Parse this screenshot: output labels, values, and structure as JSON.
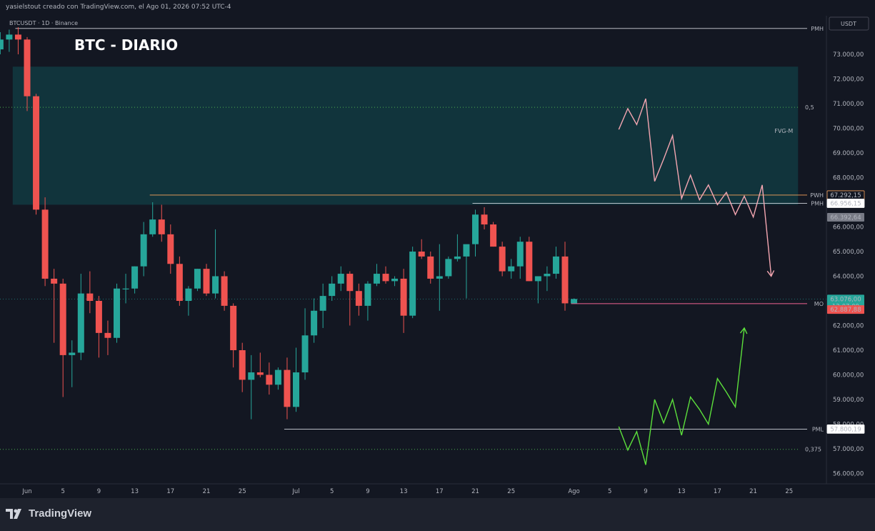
{
  "header": {
    "caption": "yasielstout creado con TradingView.com, el Ago 01, 2026 07:52 UTC-4"
  },
  "symbol_info": "BTCUSDT · 1D · Binance",
  "title": "BTC - DIARIO",
  "currency": "USDT",
  "footer": {
    "brand": "TradingView"
  },
  "colors": {
    "background": "#131722",
    "up": "#26a69a",
    "down": "#ef5350",
    "zone": "#11363e",
    "bearish_path": "#f4a6b1",
    "bullish_path": "#5ce03c",
    "fib": "#4caf50"
  },
  "chart_data": {
    "type": "candlestick",
    "title": "BTC - DIARIO",
    "price_axis": {
      "min": 55600,
      "max": 74200,
      "ticks": [
        73000,
        72000,
        71000,
        70000,
        69000,
        68000,
        67000,
        66000,
        65000,
        64000,
        63000,
        62000,
        61000,
        60000,
        59000,
        58000,
        57000,
        56000
      ]
    },
    "price_tick_labels": [
      "73.000,00",
      "72.000,00",
      "71.000,00",
      "70.000,00",
      "69.000,00",
      "68.000,00",
      "67.000,00",
      "66.000,00",
      "65.000,00",
      "64.000,00",
      "63.000,00",
      "62.000,00",
      "61.000,00",
      "60.000,00",
      "59.000,00",
      "58.000,00",
      "57.000,00",
      "56.000,00"
    ],
    "date_ticks": [
      {
        "day": 0,
        "label": "Jun"
      },
      {
        "day": 4,
        "label": "5"
      },
      {
        "day": 8,
        "label": "9"
      },
      {
        "day": 12,
        "label": "13"
      },
      {
        "day": 16,
        "label": "17"
      },
      {
        "day": 20,
        "label": "21"
      },
      {
        "day": 24,
        "label": "25"
      },
      {
        "day": 30,
        "label": "Jul"
      },
      {
        "day": 34,
        "label": "5"
      },
      {
        "day": 38,
        "label": "9"
      },
      {
        "day": 42,
        "label": "13"
      },
      {
        "day": 46,
        "label": "17"
      },
      {
        "day": 50,
        "label": "21"
      },
      {
        "day": 54,
        "label": "25"
      },
      {
        "day": 61,
        "label": "Ago"
      },
      {
        "day": 65,
        "label": "5"
      },
      {
        "day": 69,
        "label": "9"
      },
      {
        "day": 73,
        "label": "13"
      },
      {
        "day": 77,
        "label": "17"
      },
      {
        "day": 81,
        "label": "21"
      },
      {
        "day": 85,
        "label": "25"
      }
    ],
    "candles": [
      {
        "d": -3,
        "o": 73200,
        "h": 73900,
        "l": 73000,
        "c": 73600
      },
      {
        "d": -2,
        "o": 73600,
        "h": 74000,
        "l": 73100,
        "c": 73800
      },
      {
        "d": -1,
        "o": 73800,
        "h": 74100,
        "l": 73000,
        "c": 73600
      },
      {
        "d": 0,
        "o": 73600,
        "h": 73700,
        "l": 70700,
        "c": 71300
      },
      {
        "d": 1,
        "o": 71300,
        "h": 71400,
        "l": 66500,
        "c": 66700
      },
      {
        "d": 2,
        "o": 66700,
        "h": 67200,
        "l": 63600,
        "c": 63900
      },
      {
        "d": 3,
        "o": 63900,
        "h": 64300,
        "l": 61300,
        "c": 63700
      },
      {
        "d": 4,
        "o": 63700,
        "h": 63900,
        "l": 59100,
        "c": 60800
      },
      {
        "d": 5,
        "o": 60800,
        "h": 61400,
        "l": 59500,
        "c": 60900
      },
      {
        "d": 6,
        "o": 60900,
        "h": 64100,
        "l": 60600,
        "c": 63300
      },
      {
        "d": 7,
        "o": 63300,
        "h": 64200,
        "l": 62500,
        "c": 63000
      },
      {
        "d": 8,
        "o": 63000,
        "h": 63200,
        "l": 60700,
        "c": 61700
      },
      {
        "d": 9,
        "o": 61700,
        "h": 62200,
        "l": 60800,
        "c": 61500
      },
      {
        "d": 10,
        "o": 61500,
        "h": 63700,
        "l": 61300,
        "c": 63500
      },
      {
        "d": 11,
        "o": 63500,
        "h": 64100,
        "l": 62900,
        "c": 63500
      },
      {
        "d": 12,
        "o": 63500,
        "h": 64400,
        "l": 63300,
        "c": 64400
      },
      {
        "d": 13,
        "o": 64400,
        "h": 66200,
        "l": 64000,
        "c": 65700
      },
      {
        "d": 14,
        "o": 65700,
        "h": 67000,
        "l": 65600,
        "c": 66300
      },
      {
        "d": 15,
        "o": 66300,
        "h": 66900,
        "l": 65400,
        "c": 65700
      },
      {
        "d": 16,
        "o": 65700,
        "h": 66100,
        "l": 64100,
        "c": 64500
      },
      {
        "d": 17,
        "o": 64500,
        "h": 64800,
        "l": 62800,
        "c": 63000
      },
      {
        "d": 18,
        "o": 63000,
        "h": 63600,
        "l": 62400,
        "c": 63500
      },
      {
        "d": 19,
        "o": 63500,
        "h": 64300,
        "l": 63400,
        "c": 64300
      },
      {
        "d": 20,
        "o": 64300,
        "h": 64500,
        "l": 63200,
        "c": 63300
      },
      {
        "d": 21,
        "o": 63300,
        "h": 65900,
        "l": 63100,
        "c": 64000
      },
      {
        "d": 22,
        "o": 64000,
        "h": 64200,
        "l": 62600,
        "c": 62800
      },
      {
        "d": 23,
        "o": 62800,
        "h": 62900,
        "l": 60300,
        "c": 61000
      },
      {
        "d": 24,
        "o": 61000,
        "h": 61300,
        "l": 59300,
        "c": 59800
      },
      {
        "d": 25,
        "o": 59800,
        "h": 60800,
        "l": 58200,
        "c": 60100
      },
      {
        "d": 26,
        "o": 60100,
        "h": 60900,
        "l": 59900,
        "c": 60000
      },
      {
        "d": 27,
        "o": 60000,
        "h": 60500,
        "l": 59200,
        "c": 59600
      },
      {
        "d": 28,
        "o": 59600,
        "h": 60300,
        "l": 59400,
        "c": 60200
      },
      {
        "d": 29,
        "o": 60200,
        "h": 60700,
        "l": 58200,
        "c": 58700
      },
      {
        "d": 30,
        "o": 58700,
        "h": 61100,
        "l": 58500,
        "c": 60100
      },
      {
        "d": 31,
        "o": 60100,
        "h": 62700,
        "l": 59800,
        "c": 61600
      },
      {
        "d": 32,
        "o": 61600,
        "h": 63100,
        "l": 61300,
        "c": 62600
      },
      {
        "d": 33,
        "o": 62600,
        "h": 63700,
        "l": 61900,
        "c": 63200
      },
      {
        "d": 34,
        "o": 63200,
        "h": 64000,
        "l": 63000,
        "c": 63700
      },
      {
        "d": 35,
        "o": 63700,
        "h": 64400,
        "l": 63400,
        "c": 64100
      },
      {
        "d": 36,
        "o": 64100,
        "h": 64200,
        "l": 62000,
        "c": 63400
      },
      {
        "d": 37,
        "o": 63400,
        "h": 63700,
        "l": 62400,
        "c": 62800
      },
      {
        "d": 38,
        "o": 62800,
        "h": 63800,
        "l": 62200,
        "c": 63700
      },
      {
        "d": 39,
        "o": 63700,
        "h": 64500,
        "l": 63600,
        "c": 64100
      },
      {
        "d": 40,
        "o": 64100,
        "h": 64400,
        "l": 63700,
        "c": 63800
      },
      {
        "d": 41,
        "o": 63800,
        "h": 64000,
        "l": 63600,
        "c": 63900
      },
      {
        "d": 42,
        "o": 63900,
        "h": 64300,
        "l": 61700,
        "c": 62400
      },
      {
        "d": 43,
        "o": 62400,
        "h": 65200,
        "l": 62300,
        "c": 65000
      },
      {
        "d": 44,
        "o": 65000,
        "h": 65500,
        "l": 64700,
        "c": 64800
      },
      {
        "d": 45,
        "o": 64800,
        "h": 65000,
        "l": 63700,
        "c": 63900
      },
      {
        "d": 46,
        "o": 63900,
        "h": 65300,
        "l": 62600,
        "c": 64000
      },
      {
        "d": 47,
        "o": 64000,
        "h": 64800,
        "l": 63900,
        "c": 64700
      },
      {
        "d": 48,
        "o": 64700,
        "h": 65700,
        "l": 64600,
        "c": 64800
      },
      {
        "d": 49,
        "o": 64800,
        "h": 65200,
        "l": 63100,
        "c": 65300
      },
      {
        "d": 50,
        "o": 65300,
        "h": 66700,
        "l": 64800,
        "c": 66500
      },
      {
        "d": 51,
        "o": 66500,
        "h": 66800,
        "l": 65900,
        "c": 66100
      },
      {
        "d": 52,
        "o": 66100,
        "h": 66200,
        "l": 65200,
        "c": 65200
      },
      {
        "d": 53,
        "o": 65200,
        "h": 65400,
        "l": 64000,
        "c": 64200
      },
      {
        "d": 54,
        "o": 64200,
        "h": 64700,
        "l": 63900,
        "c": 64400
      },
      {
        "d": 55,
        "o": 64400,
        "h": 65600,
        "l": 63900,
        "c": 65400
      },
      {
        "d": 56,
        "o": 65400,
        "h": 65600,
        "l": 63800,
        "c": 63800
      },
      {
        "d": 57,
        "o": 63800,
        "h": 64000,
        "l": 62900,
        "c": 64000
      },
      {
        "d": 58,
        "o": 64000,
        "h": 64400,
        "l": 63400,
        "c": 64100
      },
      {
        "d": 59,
        "o": 64100,
        "h": 65200,
        "l": 63900,
        "c": 64800
      },
      {
        "d": 60,
        "o": 64800,
        "h": 65400,
        "l": 62600,
        "c": 62900
      },
      {
        "d": 61,
        "o": 62900,
        "h": 63100,
        "l": 62900,
        "c": 63076
      }
    ],
    "fvg_zone": {
      "label": "FVG-M",
      "from_day": -4,
      "to_day": 86,
      "top": 72500,
      "bottom": 66900
    },
    "levels": [
      {
        "name": "PMH",
        "price": 74050,
        "from_day": -1,
        "label": "PMH",
        "color": "#d1d4dc"
      },
      {
        "name": "PWH",
        "price": 67292.15,
        "from_day": 14,
        "label": "PWH",
        "value_label": "67.292,15",
        "color": "#f7a35c"
      },
      {
        "name": "PMH",
        "price": 66956.15,
        "from_day": 50,
        "label": "PMH",
        "value_label": "66.956,15",
        "color": "#d1d4dc"
      },
      {
        "name": "MO",
        "price": 62887.88,
        "from_day": 61,
        "label": "MO",
        "value_label": "62.887,88",
        "color": "#f06292"
      },
      {
        "name": "PML",
        "price": 57800.19,
        "from_day": 29,
        "label": "PML",
        "value_label": "57.800,19",
        "color": "#d1d4dc"
      }
    ],
    "fib_levels": [
      {
        "label": "0,5",
        "price": 70850
      },
      {
        "label": "0,375",
        "price": 56980
      }
    ],
    "price_badges": [
      {
        "value": "66.392,64",
        "price": 66392.64,
        "bg": "#787b86"
      },
      {
        "value": "63.076,00",
        "sub": "12:07:09",
        "price": 63076,
        "bg": "#26a69a"
      },
      {
        "value": "62.887,88",
        "price": 62650,
        "bg": "#ef5350"
      }
    ],
    "bearish_path": [
      [
        66,
        69950
      ],
      [
        67,
        70800
      ],
      [
        68,
        70150
      ],
      [
        69,
        71200
      ],
      [
        70,
        67850
      ],
      [
        71,
        68750
      ],
      [
        72,
        69700
      ],
      [
        73,
        67150
      ],
      [
        74,
        68100
      ],
      [
        75,
        67100
      ],
      [
        76,
        67700
      ],
      [
        77,
        66900
      ],
      [
        78,
        67400
      ],
      [
        79,
        66500
      ],
      [
        80,
        67250
      ],
      [
        81,
        66400
      ],
      [
        82,
        67700
      ],
      [
        83,
        64000
      ]
    ],
    "bullish_path": [
      [
        66,
        57900
      ],
      [
        67,
        56950
      ],
      [
        68,
        57700
      ],
      [
        69,
        56350
      ],
      [
        70,
        59000
      ],
      [
        71,
        58050
      ],
      [
        72,
        59000
      ],
      [
        73,
        57550
      ],
      [
        74,
        59100
      ],
      [
        75,
        58600
      ],
      [
        76,
        58000
      ],
      [
        77,
        59850
      ],
      [
        78,
        59300
      ],
      [
        79,
        58700
      ],
      [
        80,
        61900
      ]
    ]
  }
}
